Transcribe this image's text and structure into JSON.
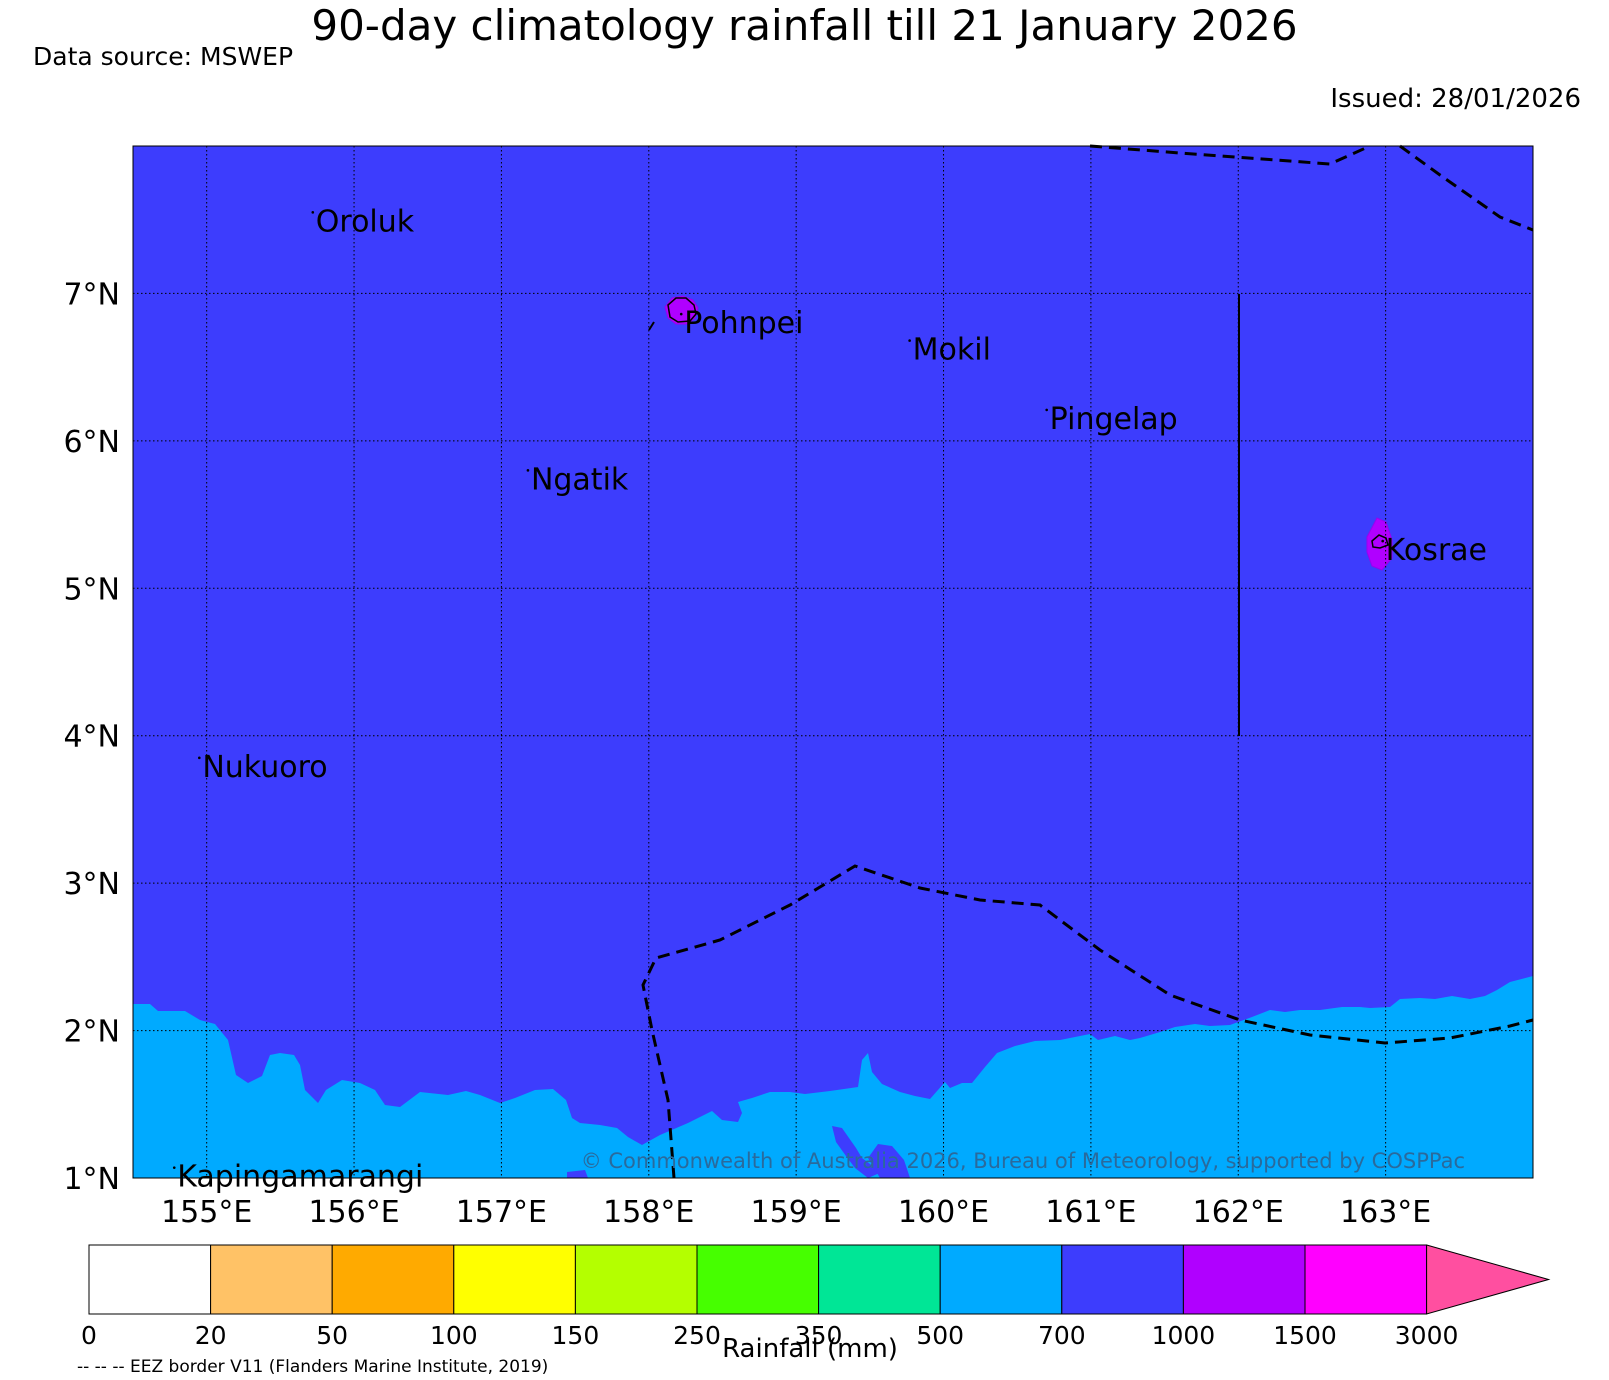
{
  "title": "90-day climatology rainfall till 21 January 2026",
  "data_source": "Data source: MSWEP",
  "issued": "Issued: 28/01/2026",
  "map": {
    "lon_range": [
      154.5,
      164.0
    ],
    "lat_range": [
      1.0,
      8.0
    ],
    "background_color": "#3d3dfd",
    "lat_ticks": [
      {
        "value": 1,
        "label": "1°N"
      },
      {
        "value": 2,
        "label": "2°N"
      },
      {
        "value": 3,
        "label": "3°N"
      },
      {
        "value": 4,
        "label": "4°N"
      },
      {
        "value": 5,
        "label": "5°N"
      },
      {
        "value": 6,
        "label": "6°N"
      },
      {
        "value": 7,
        "label": "7°N"
      }
    ],
    "lon_ticks": [
      {
        "value": 155,
        "label": "155°E"
      },
      {
        "value": 156,
        "label": "156°E"
      },
      {
        "value": 157,
        "label": "157°E"
      },
      {
        "value": 158,
        "label": "158°E"
      },
      {
        "value": 159,
        "label": "159°E"
      },
      {
        "value": 160,
        "label": "160°E"
      },
      {
        "value": 161,
        "label": "161°E"
      },
      {
        "value": 162,
        "label": "162°E"
      },
      {
        "value": 163,
        "label": "163°E"
      }
    ],
    "islands": [
      {
        "name": "Oroluk",
        "lon": 155.72,
        "lat": 7.55
      },
      {
        "name": "Pohnpei",
        "lon": 158.22,
        "lat": 6.86
      },
      {
        "name": "Mokil",
        "lon": 159.77,
        "lat": 6.68
      },
      {
        "name": "Pingelap",
        "lon": 160.7,
        "lat": 6.21
      },
      {
        "name": "Ngatik",
        "lon": 157.18,
        "lat": 5.8
      },
      {
        "name": "Kosrae",
        "lon": 162.98,
        "lat": 5.32
      },
      {
        "name": "Nukuoro",
        "lon": 154.95,
        "lat": 3.85
      },
      {
        "name": "Kapingamarangi",
        "lon": 154.78,
        "lat": 1.07
      }
    ],
    "rain_zones": [
      {
        "band": "500–700 mm",
        "color": "#00aaff",
        "area": "southern strip below about 2°N"
      },
      {
        "band": "1000–1500 mm",
        "color": "#b000ff",
        "area": "Pohnpei and Kosrae"
      }
    ],
    "copyright": "© Commonwealth of Australia 2026, Bureau of Meteorology, supported by COSPPac"
  },
  "colorbar": {
    "title": "Rainfall (mm)",
    "ticks": [
      "0",
      "20",
      "50",
      "100",
      "150",
      "250",
      "350",
      "500",
      "700",
      "1000",
      "1500",
      "3000"
    ],
    "colors": [
      "#ffffff",
      "#ffc266",
      "#ffaa00",
      "#ffff00",
      "#b4ff00",
      "#46ff00",
      "#00e696",
      "#00aaff",
      "#3d3dfd",
      "#b000ff",
      "#ff00ff"
    ],
    "extend_color": "#ff4fa0"
  },
  "footnote": "-- -- -- EEZ border V11 (Flanders Marine Institute, 2019)"
}
